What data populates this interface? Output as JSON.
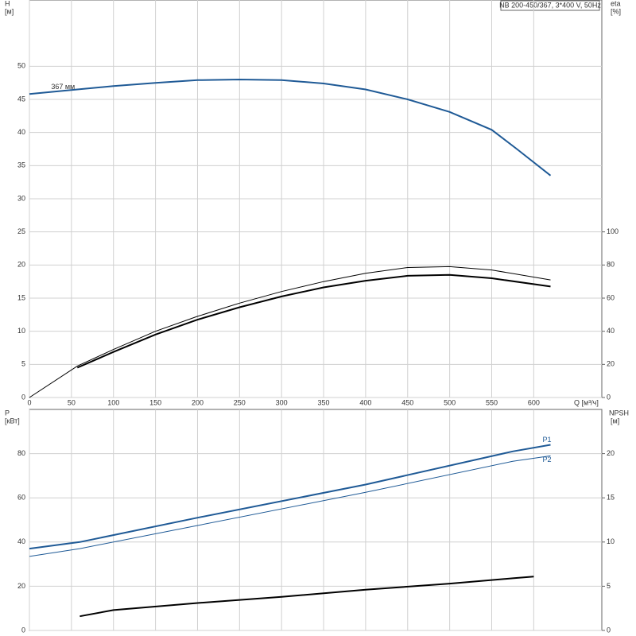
{
  "chart_data": [
    {
      "type": "line",
      "title": "NB 200-450/367, 3*400 V, 50Hz",
      "ylabel": "H",
      "yunit": "[м]",
      "y2label": "eta",
      "y2unit": "[%]",
      "xlabel": "Q [м³/ч]",
      "xlim": [
        0,
        681
      ],
      "xticks": [
        0,
        50,
        100,
        150,
        200,
        250,
        300,
        350,
        400,
        450,
        500,
        550,
        600
      ],
      "ylim": [
        0,
        60
      ],
      "yticks": [
        0,
        5,
        10,
        15,
        20,
        25,
        30,
        35,
        40,
        45,
        50
      ],
      "y2lim": [
        0,
        240
      ],
      "y2ticks": [
        0,
        20,
        40,
        60,
        80,
        100
      ],
      "grid": true,
      "series": [
        {
          "name": "367 мм",
          "color": "#1f5a96",
          "line_width": 2,
          "label_at": "start",
          "x": [
            0,
            57,
            100,
            150,
            200,
            250,
            300,
            350,
            400,
            450,
            500,
            550,
            580,
            620
          ],
          "values": [
            45.8,
            46.5,
            47,
            47.5,
            47.9,
            48,
            47.9,
            47.4,
            46.5,
            45,
            43.1,
            40.4,
            37.5,
            33.5
          ]
        },
        {
          "color": "#000000",
          "line_width": 1,
          "axis": "y2",
          "x": [
            0,
            57,
            100,
            150,
            200,
            250,
            300,
            350,
            400,
            450,
            500,
            550,
            620
          ],
          "values": [
            0,
            19,
            29,
            40,
            49,
            57,
            64,
            70,
            75,
            78.5,
            79,
            77,
            71
          ]
        },
        {
          "color": "#000000",
          "line_width": 2,
          "axis": "y2",
          "x": [
            57,
            100,
            150,
            200,
            250,
            300,
            350,
            400,
            450,
            500,
            550,
            620
          ],
          "values": [
            18,
            27.5,
            38,
            47,
            54.5,
            61,
            66.5,
            70.5,
            73.5,
            74,
            72,
            67
          ]
        }
      ]
    },
    {
      "type": "line",
      "ylabel": "P",
      "yunit": "[кВт]",
      "y2label": "NPSH",
      "y2unit": "[м]",
      "xlim": [
        0,
        681
      ],
      "ylim": [
        0,
        100
      ],
      "yticks": [
        0,
        20,
        40,
        60,
        80
      ],
      "y2lim": [
        0,
        25
      ],
      "y2ticks": [
        0,
        5,
        10,
        15,
        20
      ],
      "grid": true,
      "series": [
        {
          "name": "P1",
          "color": "#1f5a96",
          "line_width": 2,
          "label_at": "end",
          "x": [
            0,
            60,
            200,
            400,
            575,
            620
          ],
          "values": [
            37,
            40,
            51,
            66,
            81,
            84
          ]
        },
        {
          "name": "P2",
          "color": "#1f5a96",
          "line_width": 1,
          "label_at": "end",
          "x": [
            0,
            60,
            200,
            400,
            575,
            620
          ],
          "values": [
            33.5,
            37,
            47.5,
            62.5,
            76.5,
            79
          ]
        },
        {
          "color": "#000000",
          "line_width": 2,
          "axis": "y2",
          "x": [
            60,
            100,
            200,
            300,
            400,
            500,
            575,
            600
          ],
          "values": [
            1.6,
            2.3,
            3.1,
            3.8,
            4.6,
            5.3,
            5.9,
            6.1
          ]
        }
      ]
    }
  ]
}
